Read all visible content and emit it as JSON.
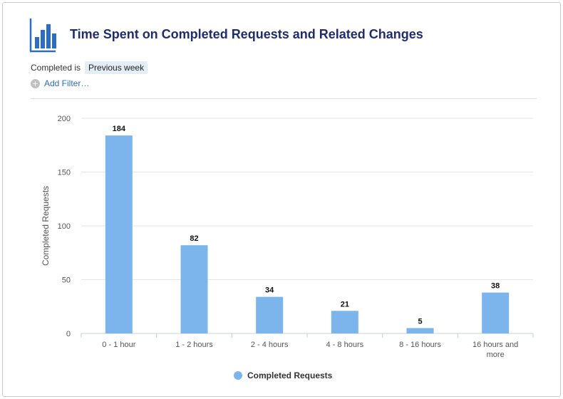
{
  "title": "Time Spent on Completed Requests and Related Changes",
  "filter": {
    "label": "Completed is",
    "value": "Previous week"
  },
  "add_filter_label": "Add Filter…",
  "icons": {
    "logo": "bar-chart-icon",
    "add_filter": "plus-circle-icon"
  },
  "colors": {
    "bar": "#7cb5ec",
    "title": "#1f2d6e",
    "link": "#2b6cc4"
  },
  "chart_data": {
    "type": "bar",
    "categories": [
      "0 - 1 hour",
      "1 - 2 hours",
      "2 - 4 hours",
      "4 - 8 hours",
      "8 - 16 hours",
      "16 hours and more"
    ],
    "series": [
      {
        "name": "Completed Requests",
        "values": [
          184,
          82,
          34,
          21,
          5,
          38
        ]
      }
    ],
    "ylabel": "Completed Requests",
    "xlabel": "",
    "ylim": [
      0,
      200
    ],
    "yticks": [
      0,
      50,
      100,
      150,
      200
    ],
    "grid": true,
    "legend": "bottom-center"
  }
}
